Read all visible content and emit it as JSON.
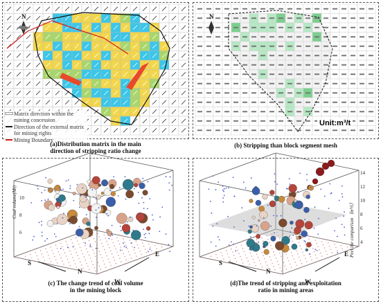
{
  "panels": {
    "a": {
      "caption_line1": "(a)Distribution matrix in the main",
      "caption_line2": "direction of stripping ratio change",
      "north": "N",
      "legend": [
        {
          "label": "Matrix direction within the mining concession",
          "color": "#ffffff"
        },
        {
          "label": "Direction of the external matrix for mining rights",
          "color": "#1a1a1a"
        },
        {
          "label": "Mining Boundary",
          "color": "#d11a1a"
        }
      ]
    },
    "b": {
      "caption": "(b) Stripping than block segment mesh",
      "north": "N",
      "unit": "Unit:m³/t"
    },
    "c": {
      "caption_line1": "(c) The change trend of coal volume",
      "caption_line2": "in the mining block",
      "axis_label": "Coal volume(Mt)",
      "ticks": [
        "6",
        "8",
        "10"
      ],
      "directions": [
        "S",
        "N",
        "E",
        "W"
      ]
    },
    "d": {
      "caption_line1": "(d)The trend of stripping and exploitation",
      "caption_line2": "ratio in mining areas",
      "axis_label": "Peel the comparison（m³/t）",
      "ticks": [
        "4",
        "6",
        "8",
        "10",
        "12",
        "14"
      ],
      "directions": [
        "S",
        "N",
        "E",
        "W"
      ]
    }
  },
  "colors": {
    "cyan": "#3cc6e8",
    "yellow": "#f2d64b",
    "green": "#a9d66b",
    "boundary": "#d11a1a",
    "arrow": "#e8492b",
    "grid_bg": "#d9d9d9"
  }
}
